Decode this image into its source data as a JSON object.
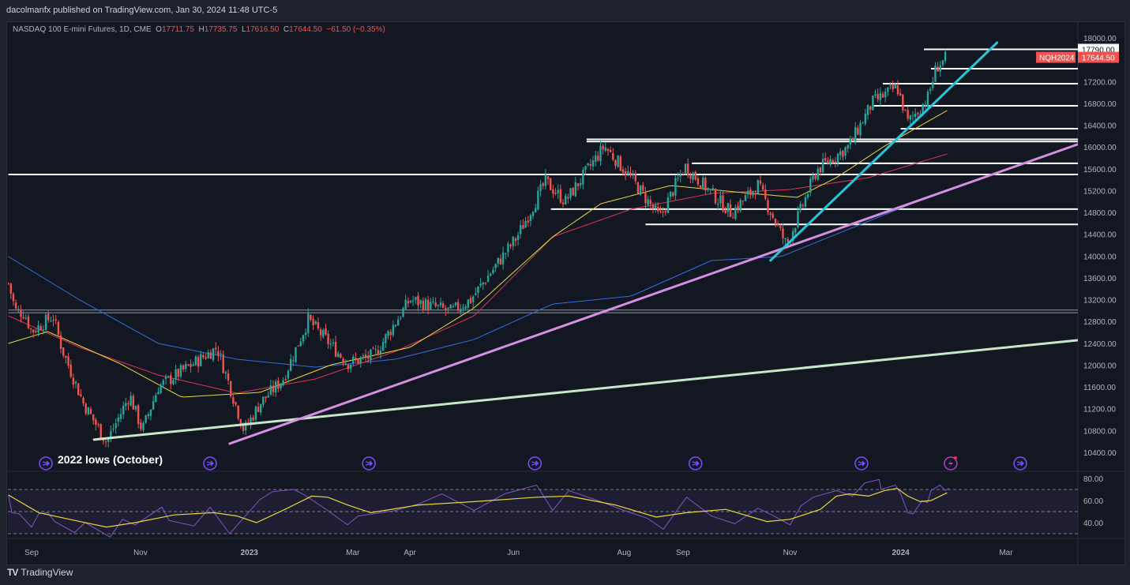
{
  "header": {
    "published": "dacolmanfx published on TradingView.com, Jan 30, 2024 11:48 UTC-5"
  },
  "legend": {
    "symbol": "NASDAQ 100 E-mini Futures, 1D, CME",
    "o_label": "O",
    "o": "17711.75",
    "h_label": "H",
    "h": "17735.75",
    "l_label": "L",
    "l": "17616.50",
    "c_label": "C",
    "c": "17644.50",
    "change": "−61.50 (−0.35%)"
  },
  "price_labels": {
    "level": "17790.00",
    "ticker": "NQH2024",
    "last": "17644.50"
  },
  "annotation": "2022 lows (October)",
  "brand": {
    "logo": "TV",
    "name": "TradingView"
  },
  "colors": {
    "up": "#26a69a",
    "down": "#ef5350",
    "ma50": "#e8d83a",
    "ma100": "#e0325a",
    "ma200": "#2f6fe0",
    "rsi": "#7e57c2",
    "rsi_ma": "#e8d83a",
    "green_trend": "#c8e6c9",
    "pink_trend": "#d48fe0",
    "cyan_trend": "#26c6da",
    "event": "#7c4dff"
  },
  "chart_data": {
    "type": "candlestick",
    "title": "NASDAQ 100 E-mini Futures, 1D, CME",
    "x_unit": "days since 2022-09-01",
    "ylim": [
      10300,
      18050
    ],
    "y_ticks": [
      18000,
      17200,
      16800,
      16400,
      16000,
      15600,
      15200,
      14800,
      14400,
      14000,
      13600,
      13200,
      12800,
      12400,
      12000,
      11600,
      11200,
      10800,
      10400
    ],
    "x_ticks": [
      {
        "d": 0,
        "label": "Sep"
      },
      {
        "d": 61,
        "label": "Nov"
      },
      {
        "d": 122,
        "label": "2023",
        "bold": true
      },
      {
        "d": 180,
        "label": "Mar"
      },
      {
        "d": 212,
        "label": "Apr"
      },
      {
        "d": 270,
        "label": "Jun"
      },
      {
        "d": 332,
        "label": "Aug"
      },
      {
        "d": 365,
        "label": "Sep"
      },
      {
        "d": 425,
        "label": "Nov"
      },
      {
        "d": 487,
        "label": "2024",
        "bold": true
      },
      {
        "d": 546,
        "label": "Mar"
      }
    ],
    "price_path": [
      [
        -13,
        13500
      ],
      [
        -9,
        13000
      ],
      [
        -4,
        12950
      ],
      [
        0,
        12615
      ],
      [
        12,
        12900
      ],
      [
        17,
        12300
      ],
      [
        29,
        11300
      ],
      [
        42,
        10590
      ],
      [
        55,
        11450
      ],
      [
        62,
        10800
      ],
      [
        71,
        11600
      ],
      [
        91,
        12036
      ],
      [
        104,
        12325
      ],
      [
        119,
        10800
      ],
      [
        128,
        11300
      ],
      [
        141,
        11750
      ],
      [
        155,
        12830
      ],
      [
        177,
        12036
      ],
      [
        192,
        12180
      ],
      [
        212,
        13200
      ],
      [
        235,
        12980
      ],
      [
        246,
        13200
      ],
      [
        272,
        14350
      ],
      [
        288,
        15365
      ],
      [
        299,
        15000
      ],
      [
        321,
        16015
      ],
      [
        336,
        15430
      ],
      [
        352,
        14700
      ],
      [
        366,
        15650
      ],
      [
        392,
        14790
      ],
      [
        407,
        15300
      ],
      [
        423,
        14200
      ],
      [
        440,
        15580
      ],
      [
        458,
        16015
      ],
      [
        471,
        16810
      ],
      [
        485,
        17100
      ],
      [
        491,
        16450
      ],
      [
        502,
        16885
      ],
      [
        507,
        17465
      ],
      [
        513,
        17644.5
      ]
    ],
    "moving_averages": [
      {
        "name": "MA200",
        "color_key": "ma200",
        "points": [
          [
            -13,
            13990
          ],
          [
            27,
            13194
          ],
          [
            71,
            12398
          ],
          [
            115,
            12108
          ],
          [
            159,
            11963
          ],
          [
            204,
            12108
          ],
          [
            248,
            12470
          ],
          [
            292,
            13120
          ],
          [
            336,
            13266
          ],
          [
            381,
            13918
          ],
          [
            420,
            13990
          ],
          [
            469,
            14640
          ],
          [
            513,
            15220
          ]
        ]
      },
      {
        "name": "MA100",
        "color_key": "ma100",
        "points": [
          [
            -13,
            12904
          ],
          [
            27,
            12325
          ],
          [
            71,
            11819
          ],
          [
            115,
            11486
          ],
          [
            159,
            11746
          ],
          [
            204,
            12253
          ],
          [
            248,
            12904
          ],
          [
            292,
            14352
          ],
          [
            336,
            14859
          ],
          [
            381,
            15148
          ],
          [
            425,
            15220
          ],
          [
            469,
            15438
          ],
          [
            513,
            15872
          ]
        ]
      },
      {
        "name": "MA50",
        "color_key": "ma50",
        "points": [
          [
            -13,
            12398
          ],
          [
            9,
            12615
          ],
          [
            49,
            12036
          ],
          [
            84,
            11413
          ],
          [
            128,
            11500
          ],
          [
            168,
            12007
          ],
          [
            212,
            12325
          ],
          [
            248,
            13049
          ],
          [
            292,
            14352
          ],
          [
            319,
            14960
          ],
          [
            358,
            15293
          ],
          [
            403,
            15148
          ],
          [
            429,
            15076
          ],
          [
            451,
            15438
          ],
          [
            478,
            16017
          ],
          [
            513,
            16668
          ]
        ]
      }
    ],
    "horizontal_levels": [
      {
        "price": 15495,
        "from": -13
      },
      {
        "price": 13010,
        "from": -13,
        "band": true
      },
      {
        "price": 12960,
        "from": -13,
        "band": true
      },
      {
        "price": 16140,
        "from": 311
      },
      {
        "price": 16100,
        "from": 311
      },
      {
        "price": 15700,
        "from": 370
      },
      {
        "price": 14860,
        "from": 291
      },
      {
        "price": 14580,
        "from": 344
      },
      {
        "price": 16335,
        "from": 487
      },
      {
        "price": 16755,
        "from": 472
      },
      {
        "price": 17160,
        "from": 477
      },
      {
        "price": 17435,
        "from": 504
      },
      {
        "price": 17790,
        "from": 500
      }
    ],
    "trendlines": [
      {
        "name": "green",
        "color_key": "green_trend",
        "from": [
          35,
          10634
        ],
        "to": [
          586,
          12456
        ]
      },
      {
        "name": "pink",
        "color_key": "pink_trend",
        "from": [
          111,
          10560
        ],
        "to": [
          586,
          16046
        ]
      },
      {
        "name": "cyan",
        "color_key": "cyan_trend",
        "from": [
          414,
          13918
        ],
        "to": [
          541,
          17913
        ]
      }
    ],
    "events": [
      {
        "d": 8,
        "type": "dividend"
      },
      {
        "d": 100,
        "type": "dividend"
      },
      {
        "d": 189,
        "type": "dividend"
      },
      {
        "d": 282,
        "type": "dividend"
      },
      {
        "d": 372,
        "type": "dividend"
      },
      {
        "d": 465,
        "type": "dividend"
      },
      {
        "d": 515,
        "type": "lightning"
      },
      {
        "d": 554,
        "type": "dividend"
      }
    ],
    "rsi": {
      "ylim": [
        25,
        85
      ],
      "ticks": [
        80,
        60,
        40
      ],
      "bands": [
        70,
        50,
        30
      ],
      "values": [
        [
          -13,
          65
        ],
        [
          -11,
          49
        ],
        [
          -7,
          48
        ],
        [
          0,
          36
        ],
        [
          4,
          48
        ],
        [
          9,
          49
        ],
        [
          13,
          41
        ],
        [
          24,
          31
        ],
        [
          30,
          40
        ],
        [
          44,
          27
        ],
        [
          51,
          43
        ],
        [
          58,
          38
        ],
        [
          73,
          54
        ],
        [
          77,
          42
        ],
        [
          91,
          37
        ],
        [
          100,
          54
        ],
        [
          111,
          30
        ],
        [
          128,
          61
        ],
        [
          135,
          68
        ],
        [
          147,
          70
        ],
        [
          153,
          65
        ],
        [
          166,
          51
        ],
        [
          177,
          38
        ],
        [
          183,
          46
        ],
        [
          204,
          51
        ],
        [
          217,
          57
        ],
        [
          230,
          66
        ],
        [
          248,
          51
        ],
        [
          265,
          66
        ],
        [
          283,
          74
        ],
        [
          292,
          51
        ],
        [
          301,
          69
        ],
        [
          319,
          59
        ],
        [
          332,
          51
        ],
        [
          345,
          44
        ],
        [
          354,
          34
        ],
        [
          367,
          63
        ],
        [
          381,
          46
        ],
        [
          394,
          39
        ],
        [
          407,
          53
        ],
        [
          416,
          46
        ],
        [
          425,
          38
        ],
        [
          431,
          55
        ],
        [
          438,
          63
        ],
        [
          451,
          69
        ],
        [
          460,
          64
        ],
        [
          467,
          76
        ],
        [
          475,
          79
        ],
        [
          476,
          70
        ],
        [
          484,
          74
        ],
        [
          487,
          66
        ],
        [
          491,
          49
        ],
        [
          494,
          48
        ],
        [
          499,
          60
        ],
        [
          502,
          58
        ],
        [
          504,
          69
        ],
        [
          509,
          74
        ],
        [
          512,
          69
        ],
        [
          514,
          71
        ]
      ],
      "ma": [
        [
          -13,
          65
        ],
        [
          4,
          49
        ],
        [
          27,
          41
        ],
        [
          42,
          36
        ],
        [
          58,
          40
        ],
        [
          80,
          47
        ],
        [
          102,
          49
        ],
        [
          115,
          46
        ],
        [
          126,
          40
        ],
        [
          142,
          52
        ],
        [
          157,
          64
        ],
        [
          166,
          63
        ],
        [
          177,
          56
        ],
        [
          190,
          49
        ],
        [
          217,
          56
        ],
        [
          248,
          59
        ],
        [
          283,
          63
        ],
        [
          301,
          64
        ],
        [
          327,
          56
        ],
        [
          350,
          45
        ],
        [
          367,
          49
        ],
        [
          389,
          52
        ],
        [
          412,
          41
        ],
        [
          425,
          43
        ],
        [
          442,
          52
        ],
        [
          451,
          64
        ],
        [
          458,
          66
        ],
        [
          469,
          64
        ],
        [
          478,
          69
        ],
        [
          485,
          71
        ],
        [
          491,
          64
        ],
        [
          498,
          59
        ],
        [
          504,
          60
        ],
        [
          513,
          67
        ]
      ]
    }
  }
}
